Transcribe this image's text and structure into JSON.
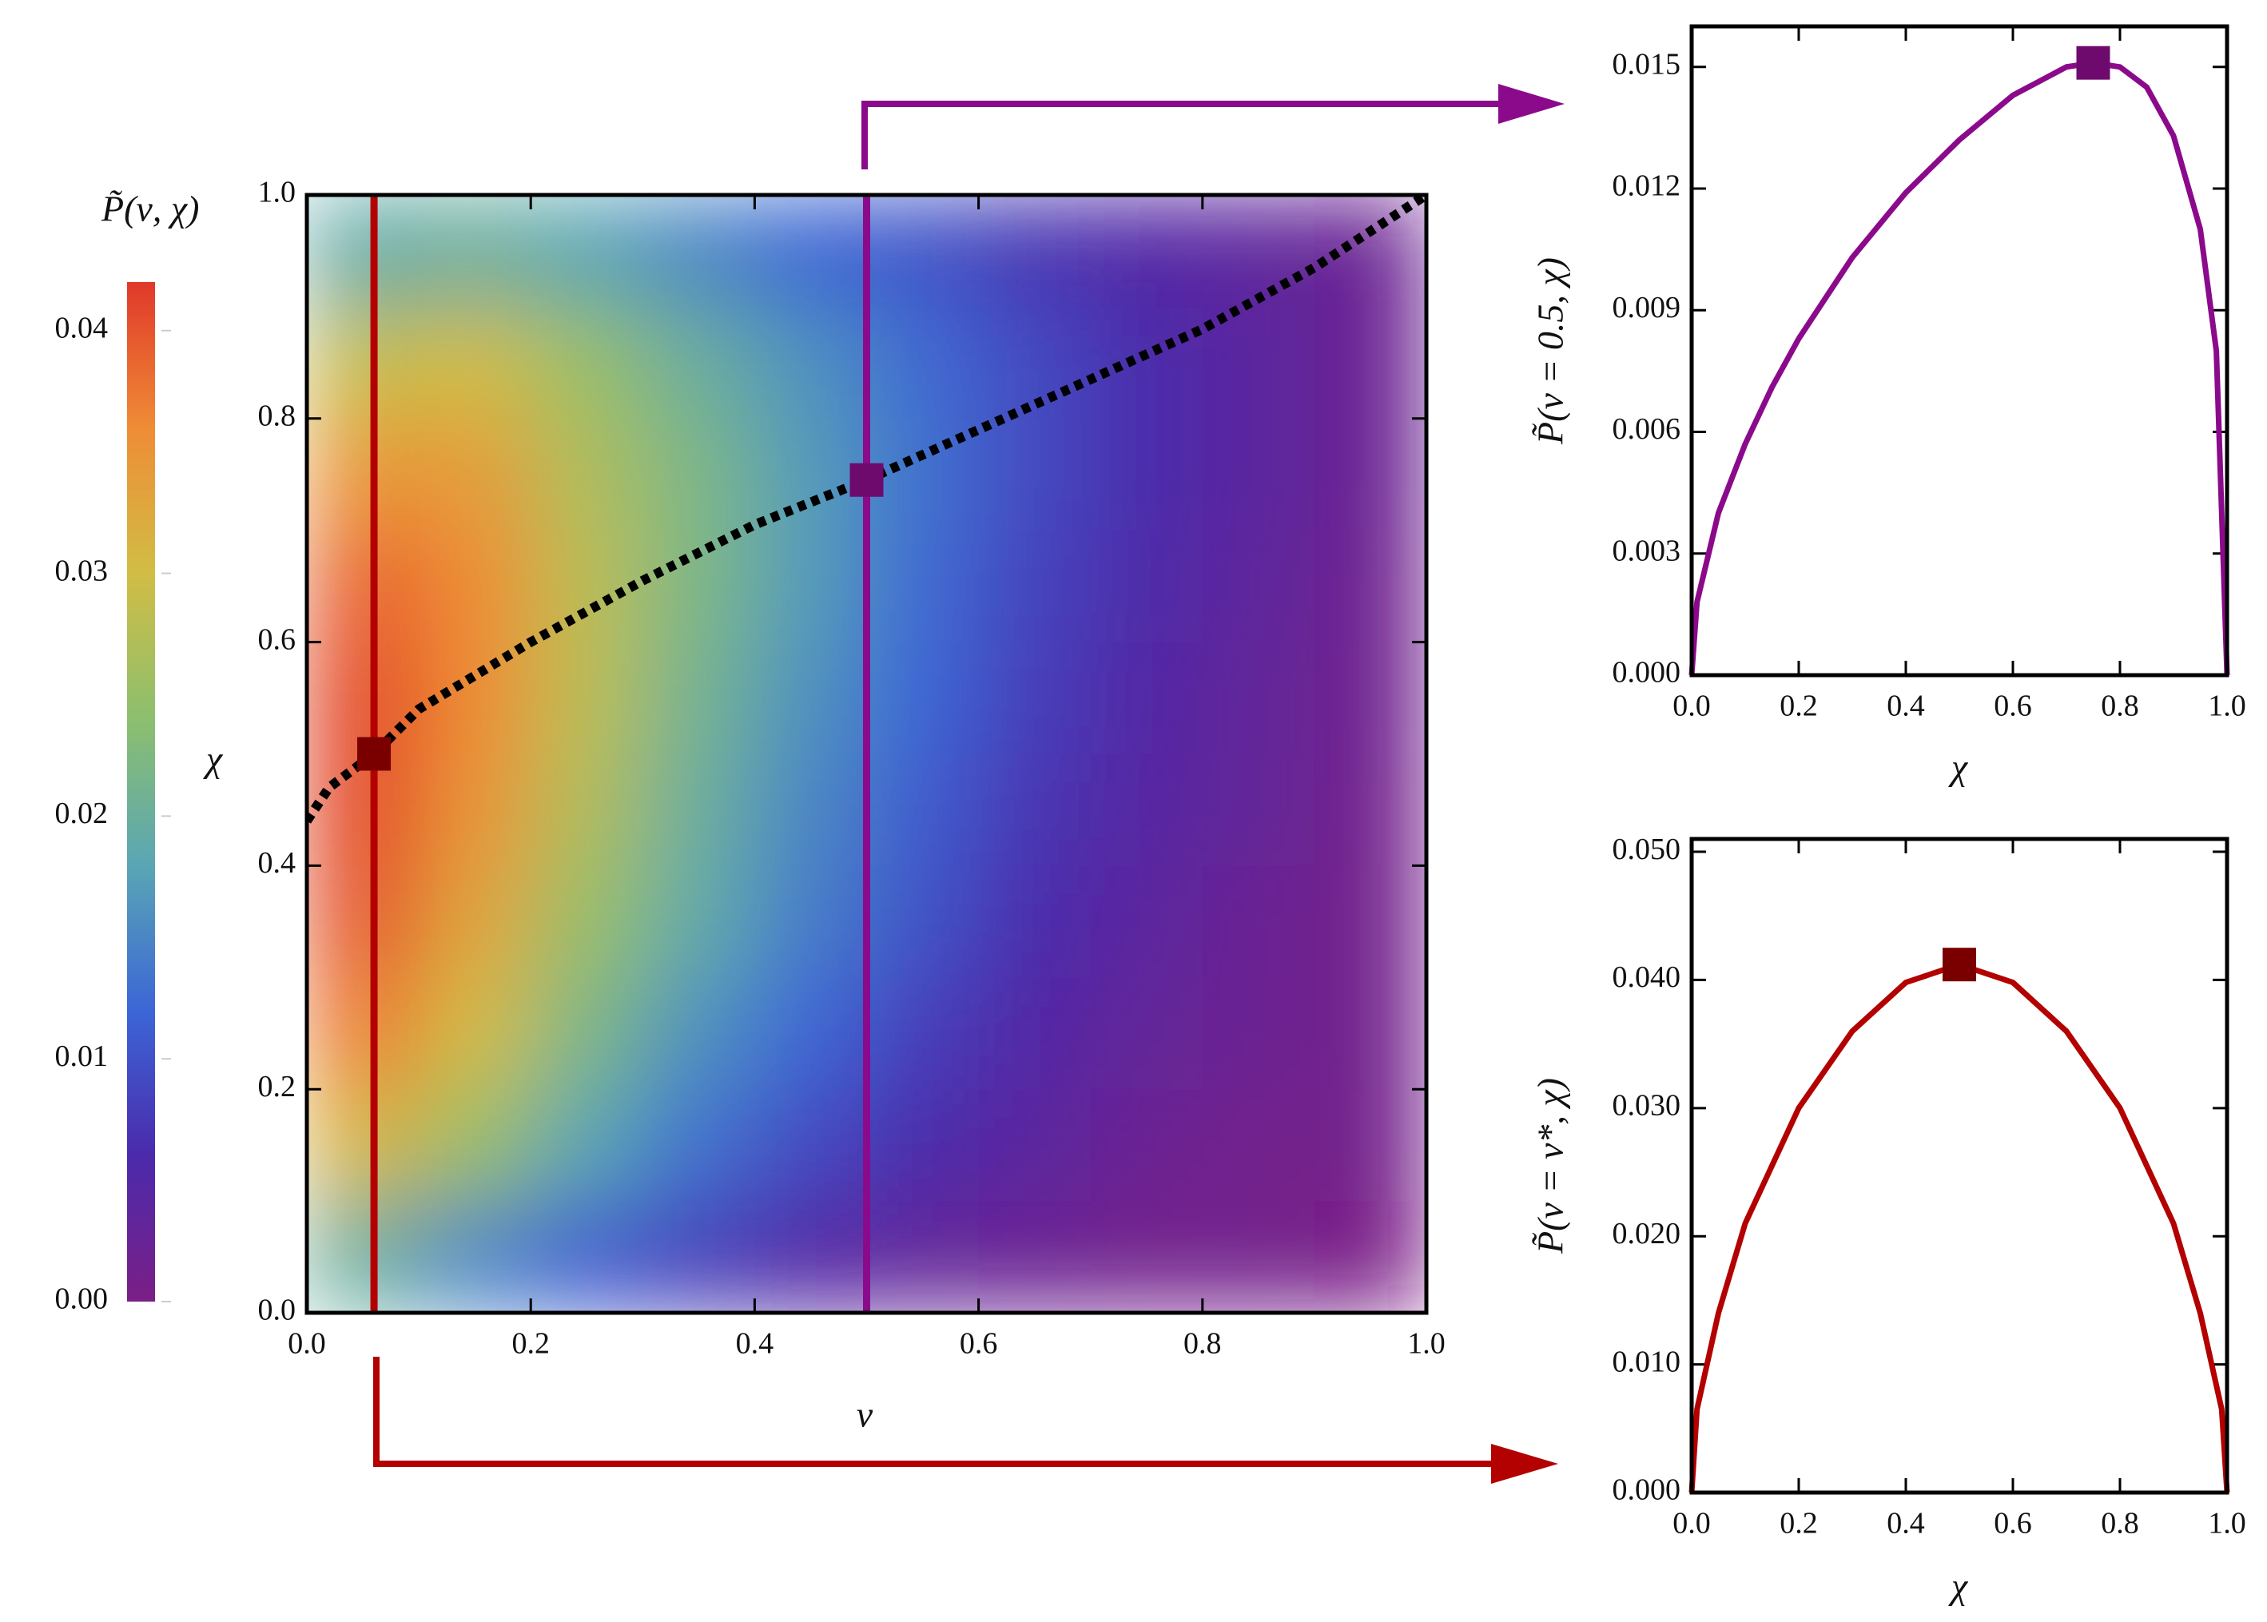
{
  "chart_data": [
    {
      "type": "heatmap",
      "xlabel": "ν",
      "ylabel": "χ",
      "colorbar_label": "P̃(ν, χ)",
      "x": [
        0.05,
        0.15,
        0.25,
        0.35,
        0.45,
        0.55,
        0.65,
        0.75,
        0.85,
        0.95
      ],
      "y": [
        0.05,
        0.15,
        0.25,
        0.35,
        0.45,
        0.55,
        0.65,
        0.75,
        0.85,
        0.95
      ],
      "z": [
        [
          0.02,
          0.015,
          0.011,
          0.008,
          0.005,
          0.003,
          0.002,
          0.001,
          0.001,
          0.0
        ],
        [
          0.031,
          0.025,
          0.018,
          0.013,
          0.009,
          0.006,
          0.004,
          0.002,
          0.001,
          0.001
        ],
        [
          0.037,
          0.03,
          0.022,
          0.016,
          0.012,
          0.008,
          0.005,
          0.003,
          0.002,
          0.001
        ],
        [
          0.04,
          0.033,
          0.025,
          0.019,
          0.014,
          0.01,
          0.006,
          0.004,
          0.002,
          0.001
        ],
        [
          0.041,
          0.035,
          0.027,
          0.02,
          0.015,
          0.011,
          0.007,
          0.0045,
          0.003,
          0.001
        ],
        [
          0.041,
          0.036,
          0.028,
          0.021,
          0.016,
          0.012,
          0.008,
          0.005,
          0.003,
          0.0015
        ],
        [
          0.039,
          0.036,
          0.028,
          0.022,
          0.017,
          0.0125,
          0.0085,
          0.0055,
          0.0035,
          0.0015
        ],
        [
          0.035,
          0.034,
          0.027,
          0.022,
          0.017,
          0.013,
          0.009,
          0.006,
          0.004,
          0.002
        ],
        [
          0.029,
          0.03,
          0.025,
          0.02,
          0.016,
          0.0125,
          0.009,
          0.006,
          0.004,
          0.002
        ],
        [
          0.019,
          0.02,
          0.018,
          0.015,
          0.012,
          0.01,
          0.007,
          0.005,
          0.0035,
          0.002
        ]
      ],
      "colorscale": [
        "#7b1f86",
        "#4b2aab",
        "#3c66d6",
        "#5aa6b4",
        "#8cbf6e",
        "#d1bd45",
        "#ef8c36",
        "#e0382a"
      ],
      "clim": [
        0,
        0.042
      ],
      "cticks": [
        {
          "value": 0,
          "label": "0.00"
        },
        0.01,
        0.02,
        0.03,
        0.04
      ],
      "xlim": [
        0,
        1
      ],
      "ylim": [
        0,
        1
      ],
      "xticks": [
        {
          "value": 0,
          "label": "0.0"
        },
        0.2,
        0.4,
        0.6,
        0.8,
        {
          "value": 1,
          "label": "1.0"
        }
      ],
      "yticks": [
        {
          "value": 0,
          "label": "0.0"
        },
        0.2,
        0.4,
        0.6,
        0.8,
        {
          "value": 1,
          "label": "1.0"
        }
      ],
      "lines": [
        {
          "x": 0.06,
          "color": "#b30000"
        },
        {
          "x": 0.5,
          "color": "#8b0a8b"
        }
      ],
      "ridge": {
        "x": [
          0,
          0.02,
          0.06,
          0.1,
          0.2,
          0.3,
          0.4,
          0.5,
          0.6,
          0.7,
          0.8,
          0.9,
          1.0
        ],
        "y": [
          0.44,
          0.47,
          0.5,
          0.54,
          0.6,
          0.655,
          0.705,
          0.745,
          0.79,
          0.835,
          0.88,
          0.935,
          1.0
        ],
        "color": "#000000"
      },
      "points": [
        {
          "x": 0.06,
          "y": 0.5,
          "color": "#7a0000"
        },
        {
          "x": 0.5,
          "y": 0.745,
          "color": "#6e0a6e"
        }
      ]
    },
    {
      "type": "line",
      "xlabel": "χ",
      "ylabel": "P̃(ν = 0.5, χ)",
      "color": "#8b0a8b",
      "x": [
        0,
        0.01,
        0.05,
        0.1,
        0.15,
        0.2,
        0.3,
        0.4,
        0.5,
        0.6,
        0.7,
        0.75,
        0.8,
        0.85,
        0.9,
        0.95,
        0.98,
        1.0
      ],
      "values": [
        0,
        0.0018,
        0.004,
        0.0057,
        0.0071,
        0.0083,
        0.0103,
        0.0119,
        0.0132,
        0.0143,
        0.015,
        0.0151,
        0.015,
        0.0145,
        0.0133,
        0.011,
        0.008,
        0
      ],
      "points": [
        {
          "x": 0.75,
          "y": 0.0151,
          "color": "#6e0a6e"
        }
      ],
      "xlim": [
        0,
        1
      ],
      "ylim": [
        0,
        0.016
      ],
      "xticks": [
        {
          "value": 0,
          "label": "0.0"
        },
        0.2,
        0.4,
        0.6,
        0.8,
        {
          "value": 1,
          "label": "1.0"
        }
      ],
      "yticks": [
        {
          "value": 0,
          "label": "0.000"
        },
        0.003,
        0.006,
        0.009,
        0.012,
        0.015
      ]
    },
    {
      "type": "line",
      "xlabel": "χ",
      "ylabel": "P̃(ν = ν*, χ)",
      "color": "#b30000",
      "x": [
        0,
        0.01,
        0.05,
        0.1,
        0.2,
        0.3,
        0.4,
        0.5,
        0.6,
        0.7,
        0.8,
        0.9,
        0.95,
        0.99,
        1.0
      ],
      "values": [
        0,
        0.0065,
        0.014,
        0.021,
        0.03,
        0.036,
        0.0398,
        0.0412,
        0.0398,
        0.036,
        0.03,
        0.021,
        0.014,
        0.0065,
        0
      ],
      "points": [
        {
          "x": 0.5,
          "y": 0.0412,
          "color": "#7a0000"
        }
      ],
      "xlim": [
        0,
        1
      ],
      "ylim": [
        0,
        0.051
      ],
      "xticks": [
        {
          "value": 0,
          "label": "0.0"
        },
        0.2,
        0.4,
        0.6,
        0.8,
        {
          "value": 1,
          "label": "1.0"
        }
      ],
      "yticks": [
        {
          "value": 0,
          "label": "0.000"
        },
        {
          "value": 0.01,
          "label": "0.010"
        },
        {
          "value": 0.02,
          "label": "0.020"
        },
        {
          "value": 0.03,
          "label": "0.030"
        },
        {
          "value": 0.04,
          "label": "0.040"
        },
        {
          "value": 0.05,
          "label": "0.050"
        }
      ]
    }
  ]
}
